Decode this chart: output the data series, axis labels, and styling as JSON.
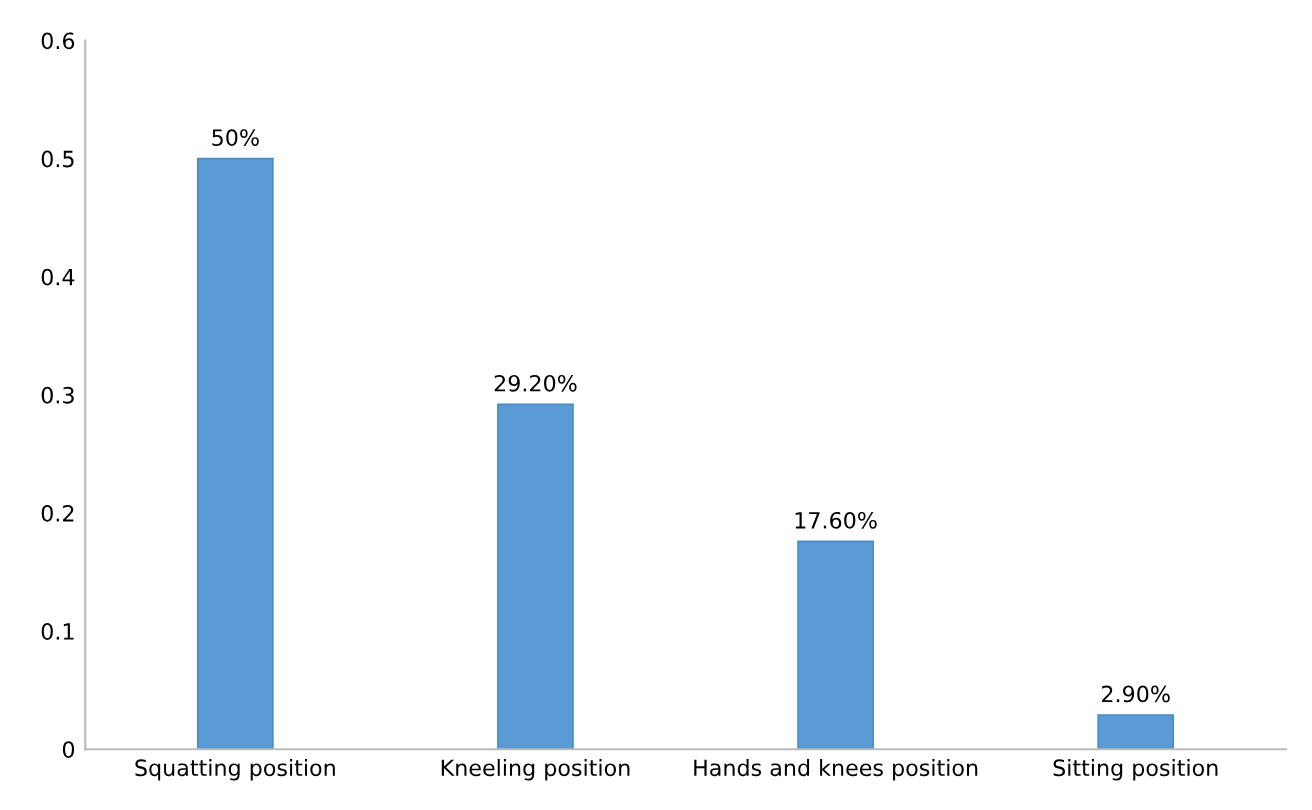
{
  "chart_data": {
    "type": "bar",
    "categories": [
      "Squatting position",
      "Kneeling position",
      "Hands and knees position",
      "Sitting position"
    ],
    "values": [
      0.5,
      0.292,
      0.176,
      0.029
    ],
    "value_labels": [
      "50%",
      "29.20%",
      "17.60%",
      "2.90%"
    ],
    "color": "#5b9bd5",
    "ylim": [
      0,
      0.6
    ],
    "yticks": [
      0,
      0.1,
      0.2,
      0.3,
      0.4,
      0.5,
      0.6
    ],
    "grid": false,
    "legend": false
  }
}
